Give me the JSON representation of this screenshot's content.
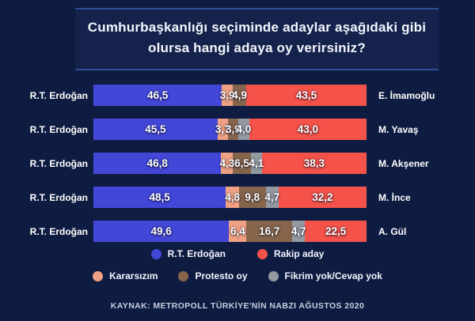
{
  "title": "Cumhurbaşkanlığı seçiminde adaylar aşağıdaki gibi olursa hangi adaya oy verirsiniz?",
  "source": "KAYNAK: METROPOLL TÜRKİYE'NİN NABZI AĞUSTOS 2020",
  "colors": {
    "background": "#0f1c42",
    "panel_bg": "#15234c",
    "panel_border": "#2e4e94",
    "erdogan": "#4347d8",
    "rakip_aday": "#f5534a",
    "kararsizim": "#f0a183",
    "protesto_oy": "#87654d",
    "fikrim_yok": "#949aa2"
  },
  "legend": {
    "row1": [
      {
        "key": "erdogan",
        "label": "R.T. Erdoğan"
      },
      {
        "key": "rakip_aday",
        "label": "Rakip aday"
      }
    ],
    "row2": [
      {
        "key": "kararsizim",
        "label": "Kararsızım"
      },
      {
        "key": "protesto_oy",
        "label": "Protesto oy"
      },
      {
        "key": "fikrim_yok",
        "label": "Fikrim yok/Cevap yok"
      }
    ]
  },
  "chart_data": {
    "type": "bar",
    "variant": "horizontal_stacked",
    "unit": "percent",
    "title": "Cumhurbaşkanlığı seçiminde adaylar aşağıdaki gibi olursa hangi adaya oy verirsiniz?",
    "legend_position": "bottom",
    "series_keys": [
      "erdogan",
      "kararsizim",
      "protesto_oy",
      "fikrim_yok",
      "rakip_aday"
    ],
    "rows": [
      {
        "left_candidate": "R.T. Erdoğan",
        "right_candidate": "E. İmamoğlu",
        "segments": [
          {
            "key": "erdogan",
            "value": 46.5,
            "label": "46,5"
          },
          {
            "key": "kararsizim",
            "value": 3.9,
            "label": "3,9"
          },
          {
            "key": "protesto_oy",
            "value": 4.9,
            "label": "4,9"
          },
          {
            "key": "rakip_aday",
            "value": 43.5,
            "label": "43,5"
          }
        ]
      },
      {
        "left_candidate": "R.T. Erdoğan",
        "right_candidate": "M. Yavaş",
        "segments": [
          {
            "key": "erdogan",
            "value": 45.5,
            "label": "45,5"
          },
          {
            "key": "kararsizim",
            "value": 3.7,
            "label": "3,7"
          },
          {
            "key": "protesto_oy",
            "value": 3.9,
            "label": "3,9"
          },
          {
            "key": "fikrim_yok",
            "value": 4.0,
            "label": "4,0"
          },
          {
            "key": "rakip_aday",
            "value": 43.0,
            "label": "43,0"
          }
        ]
      },
      {
        "left_candidate": "R.T. Erdoğan",
        "right_candidate": "M. Akşener",
        "segments": [
          {
            "key": "erdogan",
            "value": 46.8,
            "label": "46,8"
          },
          {
            "key": "kararsizim",
            "value": 4.3,
            "label": "4,3"
          },
          {
            "key": "protesto_oy",
            "value": 6.5,
            "label": "6,5"
          },
          {
            "key": "fikrim_yok",
            "value": 4.1,
            "label": "4,1"
          },
          {
            "key": "rakip_aday",
            "value": 38.3,
            "label": "38,3"
          }
        ]
      },
      {
        "left_candidate": "R.T. Erdoğan",
        "right_candidate": "M. İnce",
        "segments": [
          {
            "key": "erdogan",
            "value": 48.5,
            "label": "48,5"
          },
          {
            "key": "kararsizim",
            "value": 4.8,
            "label": "4,8"
          },
          {
            "key": "protesto_oy",
            "value": 9.8,
            "label": "9,8"
          },
          {
            "key": "fikrim_yok",
            "value": 4.7,
            "label": "4,7"
          },
          {
            "key": "rakip_aday",
            "value": 32.2,
            "label": "32,2"
          }
        ]
      },
      {
        "left_candidate": "R.T. Erdoğan",
        "right_candidate": "A. Gül",
        "segments": [
          {
            "key": "erdogan",
            "value": 49.6,
            "label": "49,6"
          },
          {
            "key": "kararsizim",
            "value": 6.4,
            "label": "6,4"
          },
          {
            "key": "protesto_oy",
            "value": 16.7,
            "label": "16,7"
          },
          {
            "key": "fikrim_yok",
            "value": 4.7,
            "label": "4,7"
          },
          {
            "key": "rakip_aday",
            "value": 22.5,
            "label": "22,5"
          }
        ]
      }
    ]
  }
}
